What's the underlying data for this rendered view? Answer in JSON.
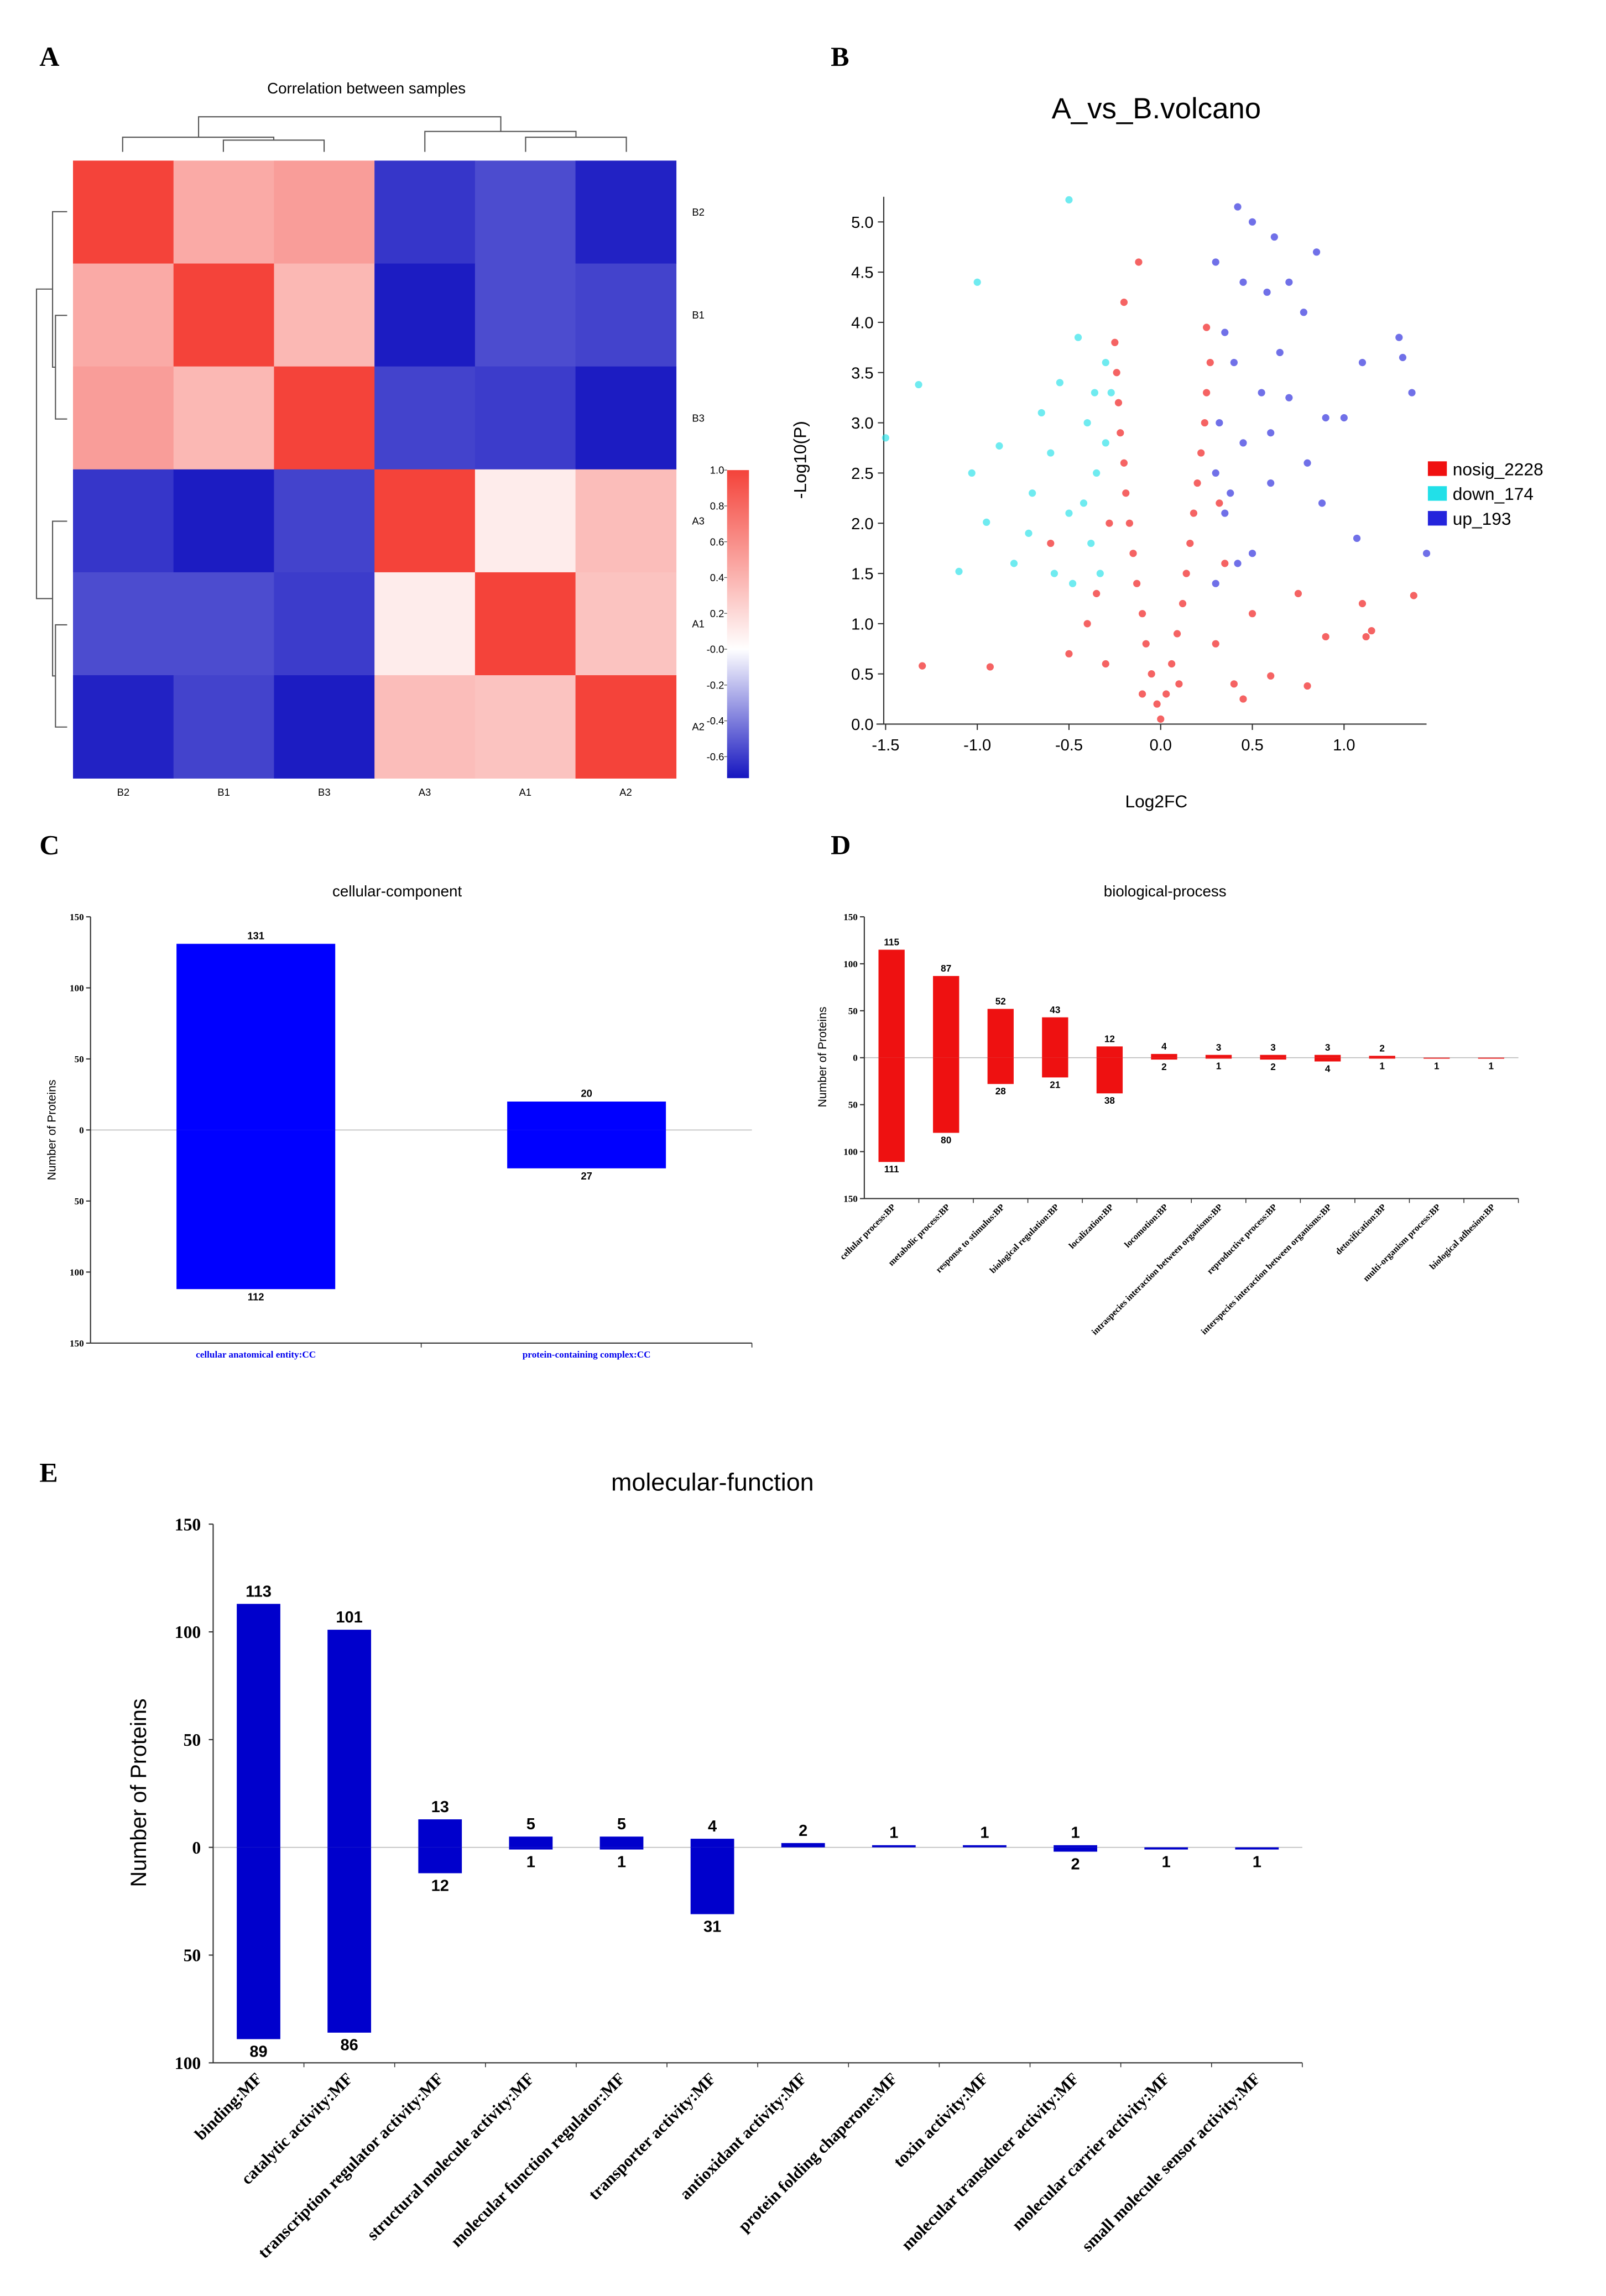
{
  "chart_data": [
    {
      "type": "heatmap",
      "label": "A",
      "title": "Correlation between samples",
      "rows": [
        "B2",
        "B1",
        "B3",
        "A3",
        "A1",
        "A2"
      ],
      "columns": [
        "B2",
        "B1",
        "B3",
        "A3",
        "A1",
        "A2"
      ],
      "values": [
        [
          1,
          0.45,
          0.52,
          -0.62,
          -0.55,
          -0.68
        ],
        [
          0.45,
          1,
          0.38,
          -0.7,
          -0.55,
          -0.58
        ],
        [
          0.52,
          0.38,
          1,
          -0.58,
          -0.6,
          -0.7
        ],
        [
          -0.62,
          -0.7,
          -0.58,
          1,
          0.1,
          0.35
        ],
        [
          -0.55,
          -0.55,
          -0.6,
          0.1,
          1,
          0.32
        ],
        [
          -0.68,
          -0.58,
          -0.7,
          0.35,
          0.32,
          1
        ]
      ],
      "colors": [
        "#1515c0",
        "#ffffff",
        "#f4433a"
      ],
      "clim": [
        -0.72,
        1.0
      ],
      "cticks": [
        {
          "value": 1,
          "label": "1.0"
        },
        0.8,
        0.6,
        0.4,
        0.2,
        {
          "value": 0,
          "label": "-0.0"
        },
        -0.2,
        -0.4,
        -0.6
      ]
    },
    {
      "type": "scatter",
      "label": "B",
      "title": "A_vs_B.volcano",
      "xlabel": "Log2FC",
      "ylabel": "-Log10(P)",
      "xlim": [
        -1.55,
        1.45
      ],
      "ylim": [
        0,
        5.25
      ],
      "xticks": [
        -1.5,
        {
          "value": -1,
          "label": "-1.0"
        },
        -0.5,
        {
          "value": 0,
          "label": "0.0"
        },
        0.5,
        {
          "value": 1,
          "label": "1.0"
        }
      ],
      "yticks": [
        {
          "value": 0,
          "label": "0.0"
        },
        0.5,
        {
          "value": 1,
          "label": "1.0"
        },
        1.5,
        {
          "value": 2,
          "label": "2.0"
        },
        2.5,
        {
          "value": 3,
          "label": "3.0"
        },
        3.5,
        {
          "value": 4,
          "label": "4.0"
        },
        4.5,
        {
          "value": 5,
          "label": "5.0"
        }
      ],
      "legend": "right",
      "series": [
        {
          "name": "nosig_2228",
          "color": "#f01010",
          "x": [
            0,
            -0.02,
            0.03,
            -0.05,
            0.06,
            -0.08,
            0.09,
            -0.1,
            0.12,
            -0.13,
            0.14,
            -0.15,
            0.16,
            -0.17,
            0.18,
            -0.19,
            0.2,
            -0.2,
            0.22,
            -0.22,
            0.24,
            -0.23,
            0.25,
            -0.24,
            0.27,
            -0.25,
            -0.2,
            -0.12,
            0.25,
            -0.3,
            0.3,
            -0.4,
            0.4,
            -0.5,
            0.5,
            -0.6,
            0.45,
            -1.3,
            -0.93,
            0.6,
            0.8,
            0.75,
            0.9,
            1.1,
            1.12,
            1.15,
            1.38,
            -0.35,
            0.35,
            -0.1,
            0.1,
            -0.28,
            0.32
          ],
          "values": [
            0.05,
            0.2,
            0.3,
            0.5,
            0.6,
            0.8,
            0.9,
            1.1,
            1.2,
            1.4,
            1.5,
            1.7,
            1.8,
            2.0,
            2.1,
            2.3,
            2.4,
            2.6,
            2.7,
            2.9,
            3.0,
            3.2,
            3.3,
            3.5,
            3.6,
            3.8,
            4.2,
            4.6,
            3.95,
            0.6,
            0.8,
            1.0,
            0.4,
            0.7,
            1.1,
            1.8,
            0.25,
            0.58,
            0.57,
            0.48,
            0.38,
            1.3,
            0.87,
            1.2,
            0.87,
            0.93,
            1.28,
            1.3,
            1.6,
            0.3,
            0.4,
            2.0,
            2.2
          ]
        },
        {
          "name": "down_174",
          "color": "#22e0e8",
          "x": [
            -0.5,
            -1.0,
            -1.32,
            -1.5,
            -1.03,
            -0.88,
            -0.95,
            -1.1,
            -0.8,
            -0.7,
            -0.6,
            -0.55,
            -0.45,
            -0.4,
            -0.35,
            -0.3,
            -0.48,
            -0.38,
            -0.65,
            -0.5,
            -0.33,
            -0.42,
            -0.58,
            -0.27,
            -0.3,
            -0.72,
            -0.36
          ],
          "values": [
            5.22,
            4.4,
            3.38,
            2.85,
            2.5,
            2.77,
            2.01,
            1.52,
            1.6,
            2.3,
            2.7,
            3.4,
            3.85,
            3.0,
            2.5,
            3.6,
            1.4,
            1.8,
            3.1,
            2.1,
            1.5,
            2.2,
            1.5,
            3.3,
            2.8,
            1.9,
            3.3
          ]
        },
        {
          "name": "up_193",
          "color": "#2424dc",
          "x": [
            0.42,
            0.5,
            0.62,
            0.85,
            0.3,
            0.45,
            0.58,
            0.7,
            0.78,
            0.35,
            0.65,
            0.4,
            0.55,
            0.7,
            0.9,
            1.0,
            1.3,
            1.32,
            1.37,
            1.1,
            0.3,
            0.45,
            0.6,
            0.8,
            0.88,
            0.35,
            0.5,
            0.3,
            0.42,
            1.07,
            1.45,
            0.32,
            0.38,
            0.6
          ],
          "values": [
            5.15,
            5.0,
            4.85,
            4.7,
            4.6,
            4.4,
            4.3,
            4.4,
            4.1,
            3.9,
            3.7,
            3.6,
            3.3,
            3.25,
            3.05,
            3.05,
            3.85,
            3.65,
            3.3,
            3.6,
            2.5,
            2.8,
            2.4,
            2.6,
            2.2,
            2.1,
            1.7,
            1.4,
            1.6,
            1.85,
            1.7,
            3.0,
            2.3,
            2.9
          ]
        }
      ]
    },
    {
      "type": "updown",
      "label": "C",
      "title": "cellular-component",
      "ylabel": "Number of Proteins",
      "categories": [
        "cellular anatomical entity:CC",
        "protein-containing complex:CC"
      ],
      "ylim": [
        -150,
        150
      ],
      "yticks": [
        150,
        100,
        50,
        0,
        {
          "value": -50,
          "label": "50"
        },
        {
          "value": -100,
          "label": "100"
        },
        {
          "value": -150,
          "label": "150"
        }
      ],
      "series": [
        {
          "color": "#0000ff",
          "values": [
            131,
            20
          ]
        },
        {
          "color": "#0000ff",
          "values": [
            -112,
            -27
          ],
          "value_labels": [
            "112",
            "27"
          ]
        }
      ]
    },
    {
      "type": "updown",
      "label": "D",
      "title": "biological-process",
      "ylabel": "Number of Proteins",
      "categories": [
        "cellular process:BP",
        "metabolic process:BP",
        "response to stimulus:BP",
        "biological regulation:BP",
        "localization:BP",
        "locomotion:BP",
        "intraspecies interaction between organisms:BP",
        "reproductive process:BP",
        "interspecies interaction between organisms:BP",
        "detoxification:BP",
        "multi-organism process:BP",
        "biological adhesion:BP"
      ],
      "ylim": [
        -150,
        150
      ],
      "yticks": [
        150,
        100,
        50,
        0,
        {
          "value": -50,
          "label": "50"
        },
        {
          "value": -100,
          "label": "100"
        },
        {
          "value": -150,
          "label": "150"
        }
      ],
      "series": [
        {
          "color": "#ee1111",
          "values": [
            115,
            87,
            52,
            43,
            12,
            4,
            3,
            3,
            3,
            2,
            null,
            null
          ]
        },
        {
          "color": "#ee1111",
          "values": [
            -111,
            -80,
            -28,
            -21,
            -38,
            -2,
            -1,
            -2,
            -4,
            -1,
            -1,
            -1
          ],
          "value_labels": [
            "111",
            "80",
            "28",
            "21",
            "38",
            "2",
            "1",
            "2",
            "4",
            "1",
            "1",
            "1"
          ]
        }
      ]
    },
    {
      "type": "updown",
      "label": "E",
      "title": "molecular-function",
      "ylabel": "Number of Proteins",
      "categories": [
        "binding:MF",
        "catalytic activity:MF",
        "transcription regulator activity:MF",
        "structural molecule activity:MF",
        "molecular function regulator:MF",
        "transporter activity:MF",
        "antioxidant activity:MF",
        "protein folding chaperone:MF",
        "toxin activity:MF",
        "molecular transducer activity:MF",
        "molecular carrier activity:MF",
        "small molecule sensor activity:MF"
      ],
      "ylim": [
        -100,
        150
      ],
      "yticks": [
        150,
        100,
        50,
        0,
        {
          "value": -50,
          "label": "50"
        },
        {
          "value": -100,
          "label": "100"
        }
      ],
      "series": [
        {
          "color": "#0000cc",
          "values": [
            113,
            101,
            13,
            5,
            5,
            4,
            2,
            1,
            1,
            1,
            null,
            null
          ]
        },
        {
          "color": "#0000cc",
          "values": [
            -89,
            -86,
            -12,
            -1,
            -1,
            -31,
            null,
            null,
            null,
            -2,
            -1,
            -1
          ],
          "value_labels": [
            "89",
            "86",
            "12",
            "1",
            "1",
            "31",
            null,
            null,
            null,
            "2",
            "1",
            "1"
          ]
        }
      ]
    }
  ]
}
